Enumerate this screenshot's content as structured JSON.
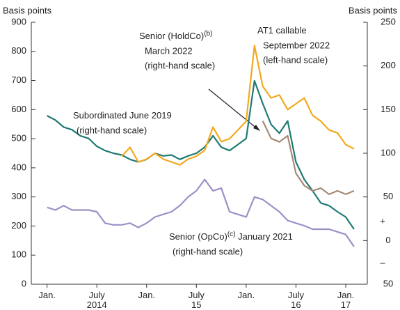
{
  "chart_data": {
    "type": "line",
    "y_axis_label": "Basis points",
    "y2_axis_label": "Basis points",
    "x": [
      0,
      1,
      2,
      3,
      4,
      5,
      6,
      7,
      8,
      9,
      10,
      11,
      12,
      13,
      14,
      15,
      16,
      17,
      18,
      19,
      20,
      21,
      22,
      23,
      24,
      25,
      26,
      27,
      28,
      29,
      30,
      31,
      32,
      33,
      34,
      35,
      36,
      37
    ],
    "xlim": [
      -1.9,
      38.6
    ],
    "xticks": [
      {
        "value": 0,
        "label": "Jan."
      },
      {
        "value": 6,
        "label": "July 2014"
      },
      {
        "value": 12,
        "label": "Jan."
      },
      {
        "value": 18,
        "label": "July 15"
      },
      {
        "value": 24,
        "label": "Jan."
      },
      {
        "value": 30,
        "label": "July 16"
      },
      {
        "value": 36,
        "label": "Jan. 17"
      }
    ],
    "ylim": [
      0,
      900
    ],
    "yticks": [
      0,
      100,
      200,
      300,
      400,
      500,
      600,
      700,
      800,
      900
    ],
    "y2lim": [
      -50,
      250
    ],
    "y2ticks": [
      {
        "value": -50,
        "label": "50"
      },
      0,
      50,
      100,
      150,
      200,
      250
    ],
    "right_axis_signs": [
      "+",
      "–"
    ],
    "series": [
      {
        "name": "Subordinated June 2019",
        "color": "#1f7a74",
        "axis": "y2",
        "values": [
          143,
          138,
          130,
          127,
          120,
          117,
          108,
          103,
          100,
          98,
          93,
          90,
          93,
          100,
          97,
          98,
          93,
          97,
          100,
          107,
          120,
          107,
          103,
          110,
          117,
          183,
          157,
          133,
          123,
          137,
          90,
          70,
          57,
          43,
          40,
          33,
          27,
          13
        ]
      },
      {
        "name": "AT1 callable September 2022",
        "color": "#f2a91e",
        "axis": "y",
        "values": [
          null,
          null,
          null,
          null,
          null,
          null,
          null,
          null,
          null,
          440,
          470,
          420,
          430,
          450,
          430,
          420,
          410,
          430,
          440,
          460,
          540,
          490,
          500,
          530,
          560,
          820,
          680,
          640,
          650,
          600,
          620,
          640,
          580,
          560,
          530,
          520,
          480,
          465
        ]
      },
      {
        "name": "Senior (HoldCo) March 2022",
        "color": "#a48a76",
        "axis": "y2",
        "values": [
          null,
          null,
          null,
          null,
          null,
          null,
          null,
          null,
          null,
          null,
          null,
          null,
          null,
          null,
          null,
          null,
          null,
          null,
          null,
          null,
          null,
          null,
          null,
          null,
          null,
          null,
          137,
          117,
          113,
          120,
          77,
          63,
          57,
          60,
          53,
          57,
          53,
          57
        ]
      },
      {
        "name": "Senior (OpCo) January 2021",
        "color": "#9d8fc6",
        "axis": "y2",
        "values": [
          38,
          35,
          40,
          35,
          35,
          35,
          33,
          20,
          18,
          18,
          20,
          15,
          20,
          27,
          30,
          33,
          40,
          50,
          57,
          70,
          57,
          60,
          33,
          30,
          27,
          50,
          47,
          40,
          33,
          23,
          20,
          17,
          13,
          13,
          13,
          10,
          7,
          -7
        ]
      }
    ],
    "annotations": [
      {
        "text": "Subordinated June 2019",
        "lines": [
          "(right-hand scale)"
        ]
      },
      {
        "text": "Senior (HoldCo)",
        "sup": "(b)",
        "lines": [
          "March 2022",
          "(right-hand scale)"
        ]
      },
      {
        "text": "AT1 callable",
        "lines": [
          "September 2022",
          "(left-hand scale)"
        ]
      },
      {
        "text": "Senior (OpCo)",
        "sup": "(c)",
        "after": " January 2021",
        "lines": [
          "(right-hand scale)"
        ]
      }
    ]
  }
}
